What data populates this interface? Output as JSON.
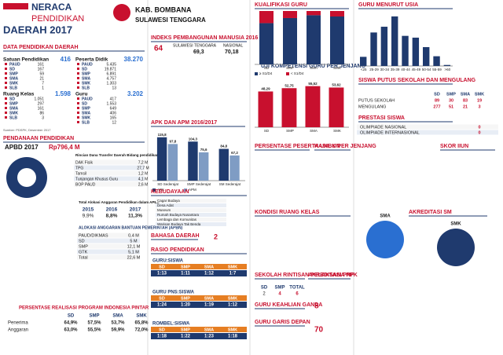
{
  "header": {
    "title1": "NERACA",
    "title2": "PENDIDIKAN",
    "title3": "DAERAH 2017",
    "region": "KAB. BOMBANA",
    "province": "SULAWESI TENGGARA"
  },
  "data_pendidikan": {
    "title": "DATA PENDIDIKAN DAERAH",
    "source": "Sumber: PDSPK, Desember 2017",
    "groups": [
      {
        "label": "Satuan Pendidikan",
        "total": "416",
        "rows": [
          [
            "PAUD",
            "161"
          ],
          [
            "SD",
            "167"
          ],
          [
            "SMP",
            "59"
          ],
          [
            "SMA",
            "21"
          ],
          [
            "SMK",
            "7"
          ],
          [
            "SLB",
            "1"
          ]
        ]
      },
      {
        "label": "Peserta Didik",
        "total": "38.270",
        "rows": [
          [
            "PAUD",
            "5.435"
          ],
          [
            "SD",
            "19.871"
          ],
          [
            "SMP",
            "6.891"
          ],
          [
            "SMA",
            "4.757"
          ],
          [
            "SMK",
            "1.303"
          ],
          [
            "SLB",
            "13"
          ]
        ]
      },
      {
        "label": "Ruang Kelas",
        "total": "1.598",
        "rows": [
          [
            "SD",
            "1.051"
          ],
          [
            "SMP",
            "297"
          ],
          [
            "SMA",
            "161"
          ],
          [
            "SMK",
            "86"
          ],
          [
            "SLB",
            "3"
          ]
        ]
      },
      {
        "label": "Guru",
        "total": "3.202",
        "rows": [
          [
            "PAUD",
            "417"
          ],
          [
            "SD",
            "1.553"
          ],
          [
            "SMP",
            "649"
          ],
          [
            "SMA",
            "406"
          ],
          [
            "SMK",
            "165"
          ],
          [
            "SLB",
            "12"
          ]
        ]
      }
    ]
  },
  "pendanaan": {
    "title": "PENDANAAN PENDIDIKAN",
    "apbd_label": "APBD 2017",
    "apbd_value": "Rp796,4 M",
    "rincian": {
      "title": "Rincian Dana Transfer Daerah Bidang pendidikan",
      "rows": [
        [
          "DAK Fisik",
          "7,2 M"
        ],
        [
          "TPG",
          "27,7 M"
        ],
        [
          "Tamsil",
          "1,2 M"
        ],
        [
          "Tunjangan Khusus Guru",
          "4,1 M"
        ],
        [
          "BOP PAUD",
          "2,6 M"
        ]
      ]
    },
    "alokasi": {
      "title": "Total Alokasi Anggaran Pendidikan dalam APBD",
      "columns": [
        "2015",
        "2016",
        "2017"
      ],
      "rows": [
        [
          "9,9%",
          "8,8%",
          "11,3%"
        ]
      ]
    },
    "apbn": {
      "title": "ALOKASI ANGGARAN BANTUAN PEMERINTAH (APBN)",
      "rows": [
        [
          "PAUD/DIKMAS",
          "0,4 M"
        ],
        [
          "SD",
          "5 M"
        ],
        [
          "SMP",
          "12,1 M"
        ],
        [
          "GTK",
          "5,1 M"
        ],
        [
          "Total",
          "22,6 M"
        ]
      ]
    },
    "pip": {
      "title": "PERSENTASE REALISASI PROGRAM INDONESIA PINTAR",
      "columns": [
        "SD",
        "SMP",
        "SMA",
        "SMK"
      ],
      "rows": [
        [
          "Penerima",
          "64,9%",
          "57,5%",
          "53,7%",
          "65,8%"
        ],
        [
          "Anggaran",
          "63,0%",
          "55,5%",
          "59,9%",
          "72,0%"
        ]
      ]
    }
  },
  "ipm": {
    "title": "INDEKS PEMBANGUNAN MANUSIA 2016",
    "kab": "64",
    "prov_label": "SULAWESI TENGGARA",
    "prov": "69,3",
    "nas_label": "NASIONAL",
    "nas": "70,18"
  },
  "chart_data": [
    {
      "type": "bar",
      "title": "APK DAN APM 2016/2017",
      "categories": [
        "SD Sederajat",
        "SMP Sederajat",
        "SM Sederajat"
      ],
      "series": [
        {
          "name": "APK",
          "color": "#1f3a6e",
          "values": [
            115.8,
            104.3,
            84.8
          ],
          "value_labels": [
            "115,8",
            "104,3",
            "84,8"
          ]
        },
        {
          "name": "APM",
          "color": "#7f9cc4",
          "values": [
            97.8,
            75.6,
            67.2
          ],
          "value_labels": [
            "97,8",
            "75,6",
            "67,2"
          ]
        }
      ],
      "ylim": [
        0,
        130
      ]
    },
    {
      "type": "bar",
      "title": "UJI KOMPETENSI GURU PER JENJANG",
      "categories": [
        "SD",
        "SMP",
        "SMA",
        "SMK"
      ],
      "series": [
        {
          "color": "#c8102e",
          "values": [
            48.29,
            52.75,
            55.52,
            53.62
          ],
          "value_labels": [
            "48,29",
            "52,75",
            "55,52",
            "53,62"
          ]
        }
      ],
      "ylim": [
        0,
        70
      ]
    },
    {
      "type": "stacked",
      "title": "KUALIFIKASI GURU",
      "categories": [
        "SD",
        "SMP",
        "SMA",
        "SMK"
      ],
      "series": [
        {
          "name": "≥ S1/D4",
          "color": "#1f3a6e",
          "values": [
            77.3,
            86.8,
            92.1,
            89.7
          ]
        },
        {
          "name": "< S1/D4",
          "color": "#c8102e",
          "values": [
            22.7,
            13.2,
            7.9,
            10.3
          ]
        }
      ],
      "ylim": [
        0,
        100
      ]
    },
    {
      "type": "bar",
      "title": "GURU MENURUT USIA",
      "categories": [
        "<25",
        "25-29",
        "30-34",
        "35-39",
        "40-44",
        "45-49",
        "50-54",
        "55-59",
        ">60"
      ],
      "series": [
        {
          "color": "#1f3a6e",
          "values": [
            108,
            396,
            464,
            586,
            356,
            335,
            223,
            115,
            12
          ]
        }
      ],
      "ylim": [
        0,
        650
      ]
    }
  ],
  "putus": {
    "title": "SISWA PUTUS SEKOLAH DAN MENGULANG",
    "columns": [
      "SD",
      "SMP",
      "SMA",
      "SMK"
    ],
    "rows": [
      [
        "PUTUS SEKOLAH",
        "89",
        "30",
        "83",
        "19"
      ],
      [
        "MENGULANG",
        "277",
        "51",
        "21",
        "3"
      ]
    ]
  },
  "prestasi": {
    "title": "PRESTASI SISWA",
    "rows": [
      [
        "OLIMPIADE NASIONAL",
        "0"
      ],
      [
        "OLIMPIADE INTERNASIONAL",
        "0"
      ]
    ]
  },
  "kebudayaan": {
    "title": "KEBUDAYAAN",
    "rows": [
      [
        "Cagar Budaya"
      ],
      [
        "Desa Adat"
      ],
      [
        "Museum"
      ],
      [
        "Rumah Budaya Nusantara"
      ],
      [
        "Lembaga dan Komunitas"
      ],
      [
        "Warisan Budaya Tak Benda"
      ]
    ]
  },
  "bahasa": {
    "title": "BAHASA DAERAH",
    "value": "2"
  },
  "rasio": {
    "title": "RASIO PENDIDIKAN",
    "groups": [
      {
        "label": "GURU:SISWA",
        "columns": [
          "SD",
          "SMP",
          "SMA",
          "SMK"
        ],
        "rows": [
          [
            "1:13",
            "1:11",
            "1:12",
            "1:7"
          ]
        ]
      },
      {
        "label": "GURU PNS:SISWA",
        "columns": [
          "SD",
          "SMP",
          "SMA",
          "SMK"
        ],
        "rows": [
          [
            "1:24",
            "1:20",
            "1:19",
            "1:12"
          ]
        ]
      },
      {
        "label": "ROMBEL:SISWA",
        "columns": [
          "SD",
          "SMP",
          "SMA",
          "SMK"
        ],
        "rows": [
          [
            "1:18",
            "1:22",
            "1:23",
            "1:18"
          ]
        ]
      }
    ]
  },
  "unbk": {
    "title": "PERSENTASE PESERTA UNBK PER JENJANG"
  },
  "hasil_un": {
    "title": "HASIL UN"
  },
  "skor": {
    "title": "SKOR IIUN"
  },
  "ruang": {
    "title": "KONDISI RUANG KELAS"
  },
  "rintisan": {
    "title": "SEKOLAH RINTISAN PELAKSANA PPK",
    "columns": [
      "SD",
      "SMP",
      "TOTAL"
    ],
    "rows": [
      [
        "2",
        "4",
        "6"
      ]
    ]
  },
  "pnf": {
    "title": "AKREDITASI PNF"
  },
  "keahlian": {
    "title": "GURU KEAHLIAN GANDA",
    "value": "8"
  },
  "gdd": {
    "title": "GURU GARIS DEPAN",
    "value": "70"
  },
  "akreditasi": {
    "title": "AKREDITASI SM",
    "labels": [
      "SMA",
      "SMK"
    ]
  }
}
